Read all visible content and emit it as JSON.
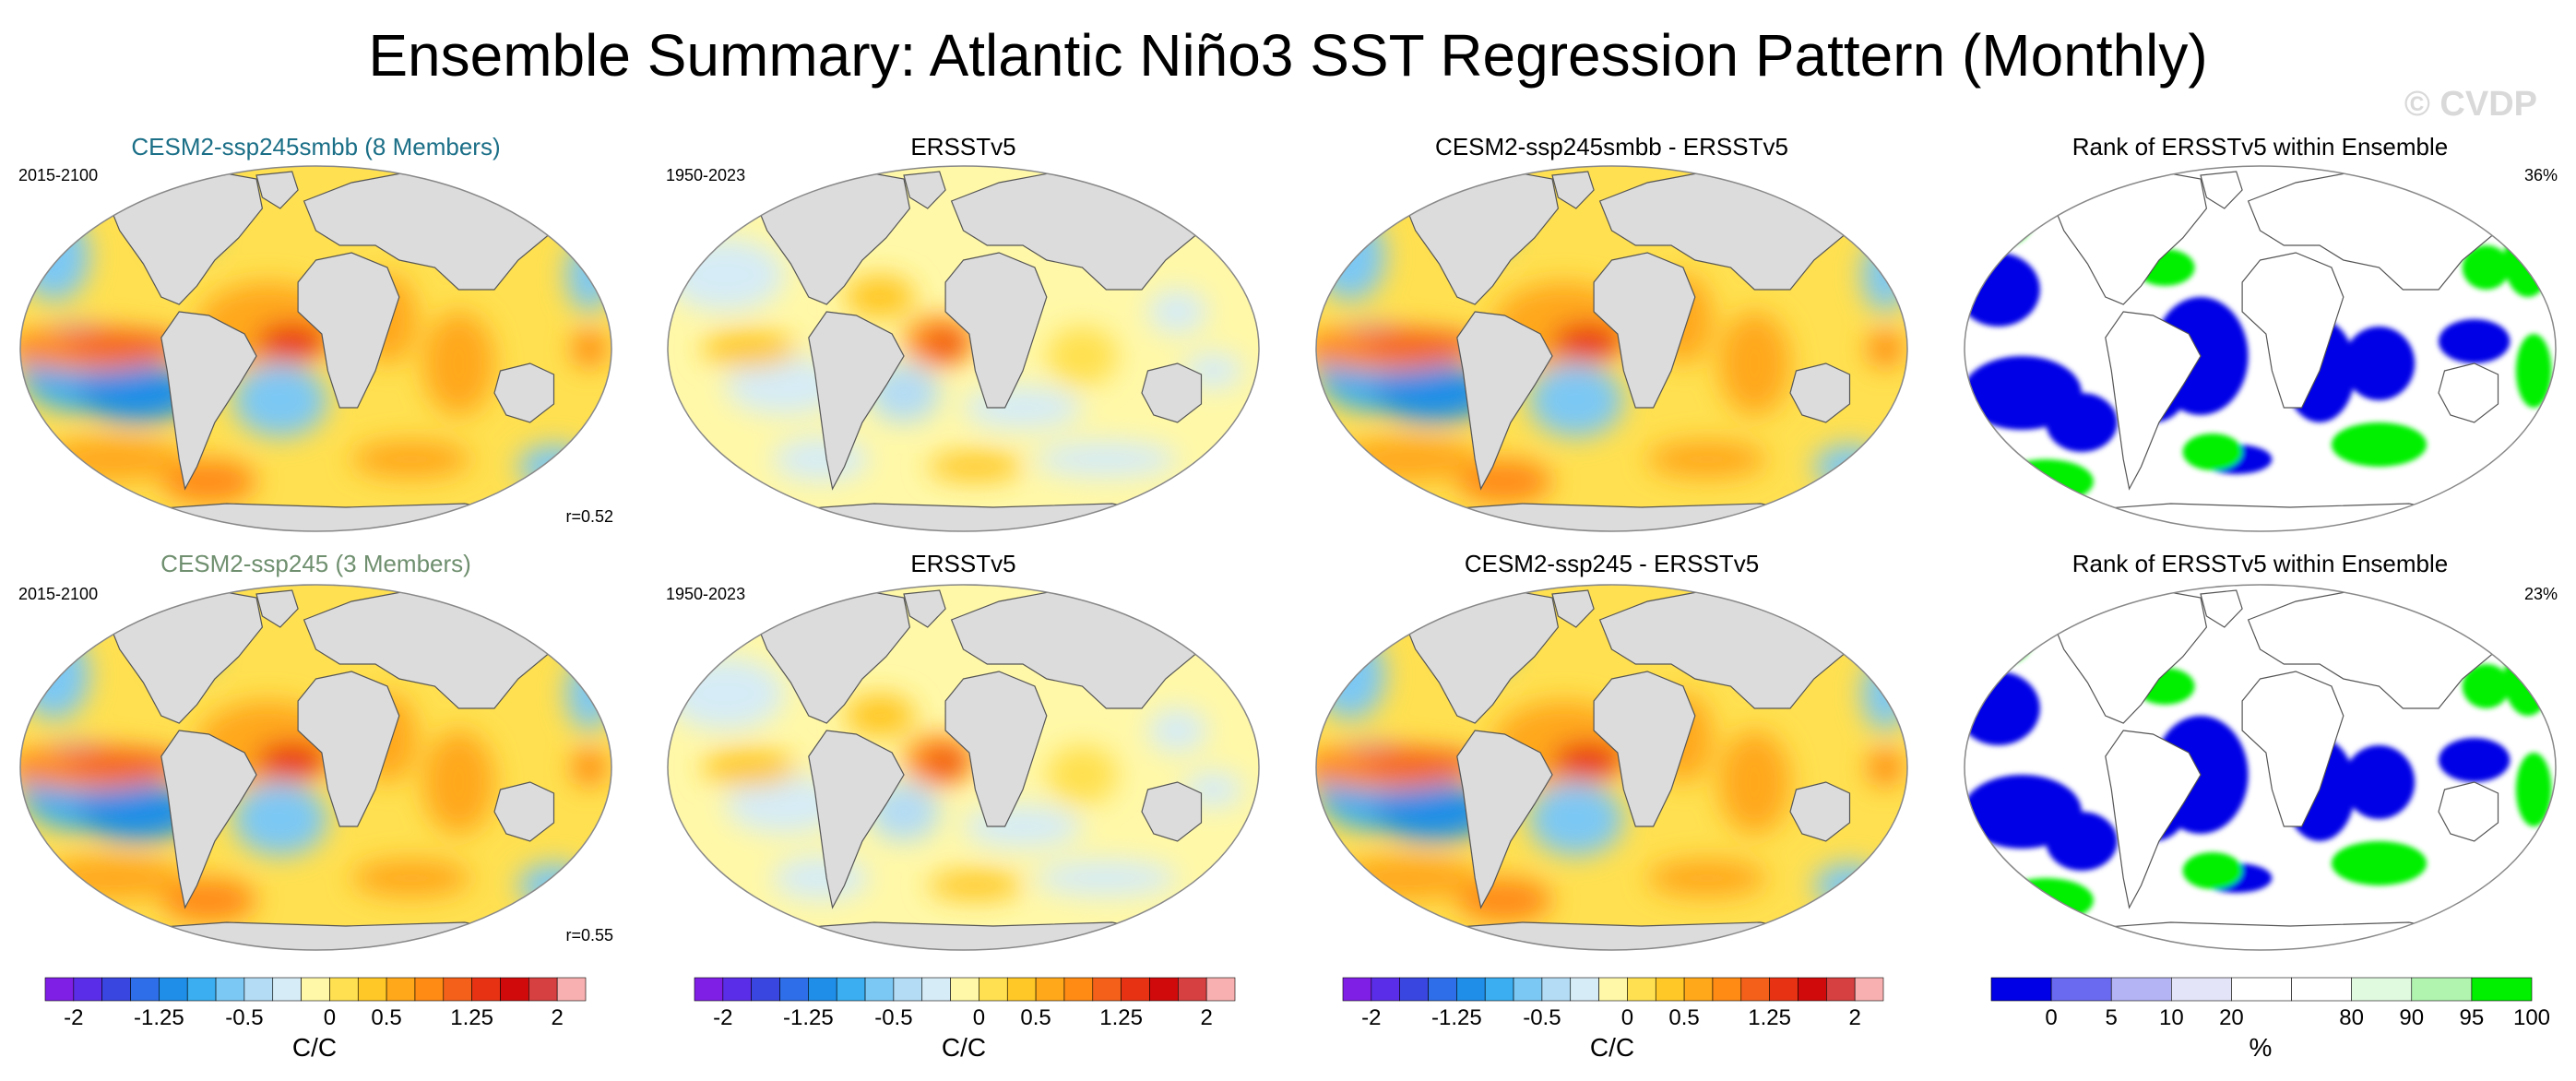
{
  "header": {
    "title": "Ensemble Summary: Atlantic Niño3 SST Regression Pattern (Monthly)",
    "watermark": "© CVDP"
  },
  "colors": {
    "land": "#dcdcdc",
    "coast": "#555555",
    "title_ensemble_1": "#1b6f87",
    "title_ensemble_2": "#6f8f6f",
    "rank_low": "#0000e6",
    "rank_high": "#00f000",
    "rank_mid": "#ffffff"
  },
  "panels": [
    {
      "title": "CESM2-ssp245smbb (8 Members)",
      "period": "2015-2100",
      "corner": "r=0.52",
      "kind": "field",
      "variant": "model"
    },
    {
      "title": "ERSSTv5",
      "period": "1950-2023",
      "corner": "",
      "kind": "field",
      "variant": "obs"
    },
    {
      "title": "CESM2-ssp245smbb - ERSSTv5",
      "period": "",
      "corner": "",
      "kind": "field",
      "variant": "model"
    },
    {
      "title": "Rank of ERSSTv5 within Ensemble",
      "period": "",
      "corner": "36%",
      "kind": "rank",
      "variant": "rank"
    },
    {
      "title": "CESM2-ssp245 (3 Members)",
      "period": "2015-2100",
      "corner": "r=0.55",
      "kind": "field",
      "variant": "model"
    },
    {
      "title": "ERSSTv5",
      "period": "1950-2023",
      "corner": "",
      "kind": "field",
      "variant": "obs"
    },
    {
      "title": "CESM2-ssp245 - ERSSTv5",
      "period": "",
      "corner": "",
      "kind": "field",
      "variant": "model"
    },
    {
      "title": "Rank of ERSSTv5 within Ensemble",
      "period": "",
      "corner": "23%",
      "kind": "rank",
      "variant": "rank"
    }
  ],
  "colorbars": [
    {
      "label": "C/C",
      "ticks": [
        "-2",
        "-1.25",
        "-0.5",
        "0",
        "0.5",
        "1.25",
        "2"
      ],
      "tick_boundaries": [
        1,
        4,
        7,
        10,
        12,
        15,
        18
      ],
      "colors": [
        "#7f1fe6",
        "#5a2ee8",
        "#3a46e0",
        "#2e6ee8",
        "#1e8ee8",
        "#3aaef0",
        "#7cc8f4",
        "#b4dcf4",
        "#d6ecf6",
        "#fff8a8",
        "#ffe050",
        "#ffc826",
        "#ffa81a",
        "#ff8a14",
        "#f4601a",
        "#e83214",
        "#d00a0a",
        "#d64040",
        "#f8b0b0"
      ]
    },
    {
      "label": "C/C",
      "ticks": [
        "-2",
        "-1.25",
        "-0.5",
        "0",
        "0.5",
        "1.25",
        "2"
      ],
      "tick_boundaries": [
        1,
        4,
        7,
        10,
        12,
        15,
        18
      ],
      "colors": [
        "#7f1fe6",
        "#5a2ee8",
        "#3a46e0",
        "#2e6ee8",
        "#1e8ee8",
        "#3aaef0",
        "#7cc8f4",
        "#b4dcf4",
        "#d6ecf6",
        "#fff8a8",
        "#ffe050",
        "#ffc826",
        "#ffa81a",
        "#ff8a14",
        "#f4601a",
        "#e83214",
        "#d00a0a",
        "#d64040",
        "#f8b0b0"
      ]
    },
    {
      "label": "C/C",
      "ticks": [
        "-2",
        "-1.25",
        "-0.5",
        "0",
        "0.5",
        "1.25",
        "2"
      ],
      "tick_boundaries": [
        1,
        4,
        7,
        10,
        12,
        15,
        18
      ],
      "colors": [
        "#7f1fe6",
        "#5a2ee8",
        "#3a46e0",
        "#2e6ee8",
        "#1e8ee8",
        "#3aaef0",
        "#7cc8f4",
        "#b4dcf4",
        "#d6ecf6",
        "#fff8a8",
        "#ffe050",
        "#ffc826",
        "#ffa81a",
        "#ff8a14",
        "#f4601a",
        "#e83214",
        "#d00a0a",
        "#d64040",
        "#f8b0b0"
      ]
    },
    {
      "label": "%",
      "ticks": [
        "0",
        "5",
        "10",
        "20",
        "80",
        "90",
        "95",
        "100"
      ],
      "tick_boundaries": [
        1,
        2,
        3,
        4,
        6,
        7,
        8,
        9
      ],
      "colors": [
        "#0000e6",
        "#6a6af0",
        "#b4b4f4",
        "#e4e4f8",
        "#ffffff",
        "#ffffff",
        "#e0fae0",
        "#b0f4b0",
        "#00f000"
      ]
    }
  ],
  "chart_data": {
    "type": "heatmap",
    "title": "Ensemble Summary: Atlantic Niño3 SST Regression Pattern (Monthly)",
    "units": "C/C",
    "panels": [
      {
        "title": "CESM2-ssp245smbb (8 Members)",
        "period": "2015-2100",
        "pattern_correlation": 0.52
      },
      {
        "title": "ERSSTv5",
        "period": "1950-2023"
      },
      {
        "title": "CESM2-ssp245smbb - ERSSTv5"
      },
      {
        "title": "Rank of ERSSTv5 within Ensemble",
        "percent": 36
      },
      {
        "title": "CESM2-ssp245 (3 Members)",
        "period": "2015-2100",
        "pattern_correlation": 0.55
      },
      {
        "title": "ERSSTv5",
        "period": "1950-2023"
      },
      {
        "title": "CESM2-ssp245 - ERSSTv5"
      },
      {
        "title": "Rank of ERSSTv5 within Ensemble",
        "percent": 23
      }
    ],
    "contour_levels": [
      -2,
      -1.75,
      -1.5,
      -1.25,
      -1,
      -0.75,
      -0.5,
      -0.25,
      -0.1,
      0,
      0.1,
      0.25,
      0.5,
      0.75,
      1,
      1.25,
      1.5,
      1.75,
      2
    ],
    "rank_levels": [
      0,
      5,
      10,
      20,
      80,
      90,
      95,
      100
    ]
  }
}
